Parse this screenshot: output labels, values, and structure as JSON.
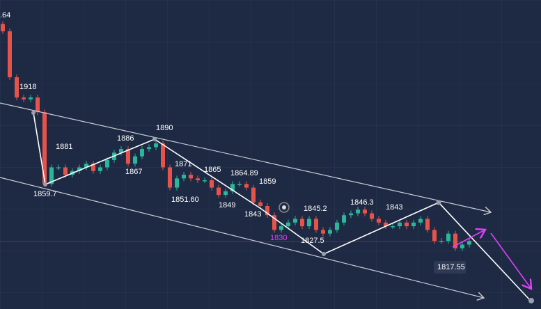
{
  "chart_data": {
    "type": "candlestick",
    "ylim": [
      1798,
      1966
    ],
    "up_color": "#2bb59a",
    "down_color": "#e5534b",
    "values": [
      1949,
      1924,
      1913,
      1912,
      1913,
      1905,
      1866,
      1875,
      1875,
      1871,
      1873,
      1875,
      1877,
      1873,
      1875,
      1879,
      1883,
      1885,
      1877,
      1881,
      1885,
      1886,
      1888,
      1875,
      1864,
      1869,
      1871,
      1869,
      1868,
      1868,
      1864,
      1860,
      1862,
      1866,
      1866,
      1864,
      1856,
      1854,
      1849,
      1841,
      1843,
      1845,
      1847,
      1843,
      1847,
      1841,
      1839,
      1841,
      1845,
      1849,
      1850,
      1852,
      1850,
      1847,
      1845,
      1843,
      1843,
      1845,
      1843,
      1845,
      1847,
      1841,
      1835,
      1835,
      1839,
      1831,
      1833,
      1835
    ],
    "annotations": [
      ".64",
      "1918",
      "1859.7",
      "1881",
      "1886",
      "1867",
      "1890",
      "1871",
      "1851.60",
      "1865",
      "1849",
      "1864.89",
      "1843",
      "1859",
      "1830",
      "1845.2",
      "1827.5",
      "1846.3",
      "1843",
      "1817.55"
    ]
  }
}
